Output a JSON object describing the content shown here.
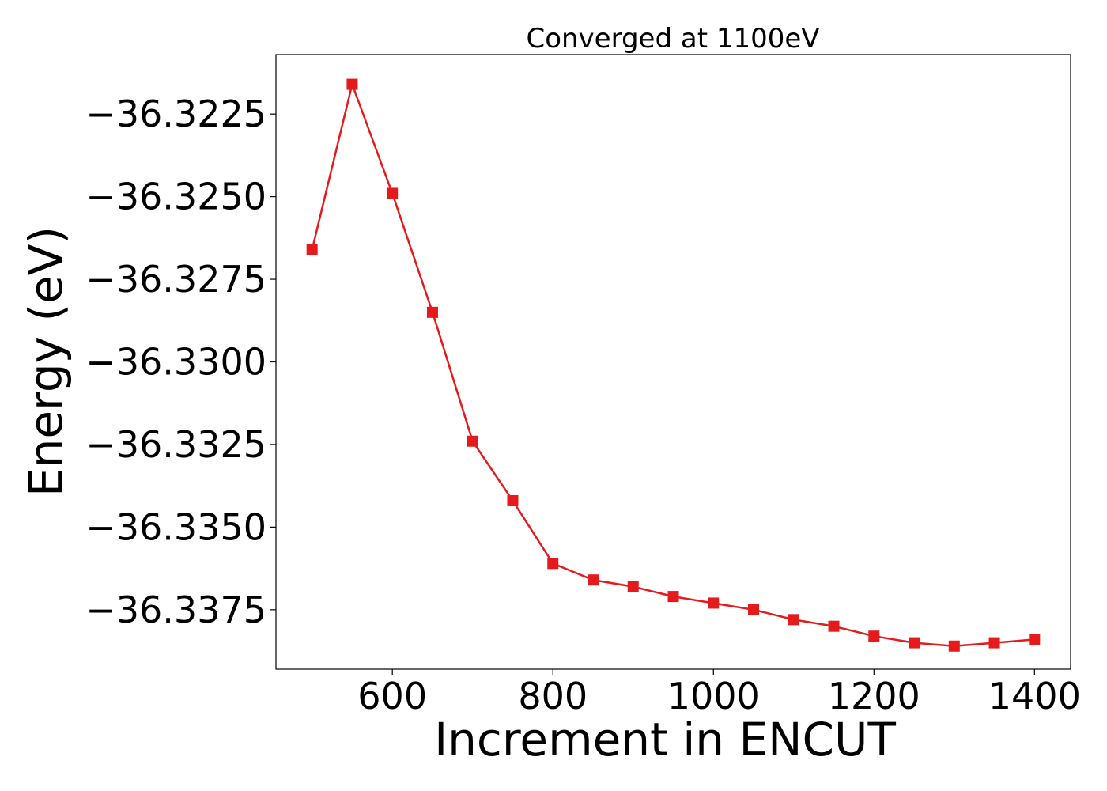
{
  "chart_data": {
    "type": "line",
    "title": "Converged at 1100eV",
    "xlabel": "Increment in ENCUT",
    "ylabel": "Energy (eV)",
    "xlim": [
      455,
      1445
    ],
    "ylim": [
      -36.3393,
      -36.3207
    ],
    "x_ticks": [
      600,
      800,
      1000,
      1200,
      1400
    ],
    "x_tick_labels": [
      "600",
      "800",
      "1000",
      "1200",
      "1400"
    ],
    "y_ticks": [
      -36.3225,
      -36.325,
      -36.3275,
      -36.33,
      -36.3325,
      -36.335,
      -36.3375
    ],
    "y_tick_labels": [
      "−36.3225",
      "−36.3250",
      "−36.3275",
      "−36.3300",
      "−36.3325",
      "−36.3350",
      "−36.3375"
    ],
    "grid": false,
    "marker": "square",
    "series": [
      {
        "color": "#e41a1c",
        "x": [
          500,
          550,
          600,
          650,
          700,
          750,
          800,
          850,
          900,
          950,
          1000,
          1050,
          1100,
          1150,
          1200,
          1250,
          1300,
          1350,
          1400
        ],
        "y": [
          -36.3266,
          -36.3216,
          -36.3249,
          -36.3285,
          -36.3324,
          -36.3342,
          -36.3361,
          -36.3366,
          -36.3368,
          -36.3371,
          -36.3373,
          -36.3375,
          -36.3378,
          -36.338,
          -36.3383,
          -36.3385,
          -36.3386,
          -36.3385,
          -36.3384
        ]
      }
    ]
  }
}
